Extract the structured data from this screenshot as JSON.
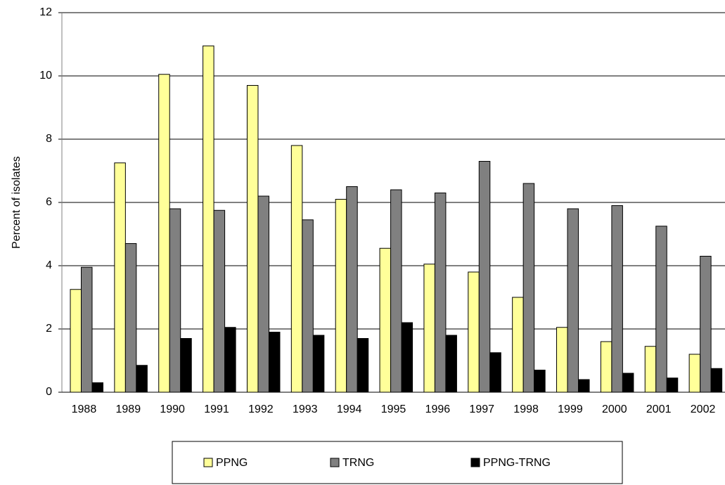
{
  "chart_data": {
    "type": "bar",
    "y_label": "Percent of isolates",
    "categories": [
      "1988",
      "1989",
      "1990",
      "1991",
      "1992",
      "1993",
      "1994",
      "1995",
      "1996",
      "1997",
      "1998",
      "1999",
      "2000",
      "2001",
      "2002"
    ],
    "series": [
      {
        "name": "PPNG",
        "color": "#ffff99",
        "values": [
          3.25,
          7.25,
          10.05,
          10.95,
          9.7,
          7.8,
          6.1,
          4.55,
          4.05,
          3.8,
          3.0,
          2.05,
          1.6,
          1.45,
          1.2
        ]
      },
      {
        "name": "TRNG",
        "color": "#808080",
        "values": [
          3.95,
          4.7,
          5.8,
          5.75,
          6.2,
          5.45,
          6.5,
          6.4,
          6.3,
          7.3,
          6.6,
          5.8,
          5.9,
          5.25,
          4.3
        ]
      },
      {
        "name": "PPNG-TRNG",
        "color": "#000000",
        "values": [
          0.3,
          0.85,
          1.7,
          2.05,
          1.9,
          1.8,
          1.7,
          2.2,
          1.8,
          1.25,
          0.7,
          0.4,
          0.6,
          0.45,
          0.75
        ]
      }
    ],
    "ylim": [
      0,
      12
    ],
    "yticks": [
      0,
      2,
      4,
      6,
      8,
      10,
      12
    ],
    "grid": true
  }
}
